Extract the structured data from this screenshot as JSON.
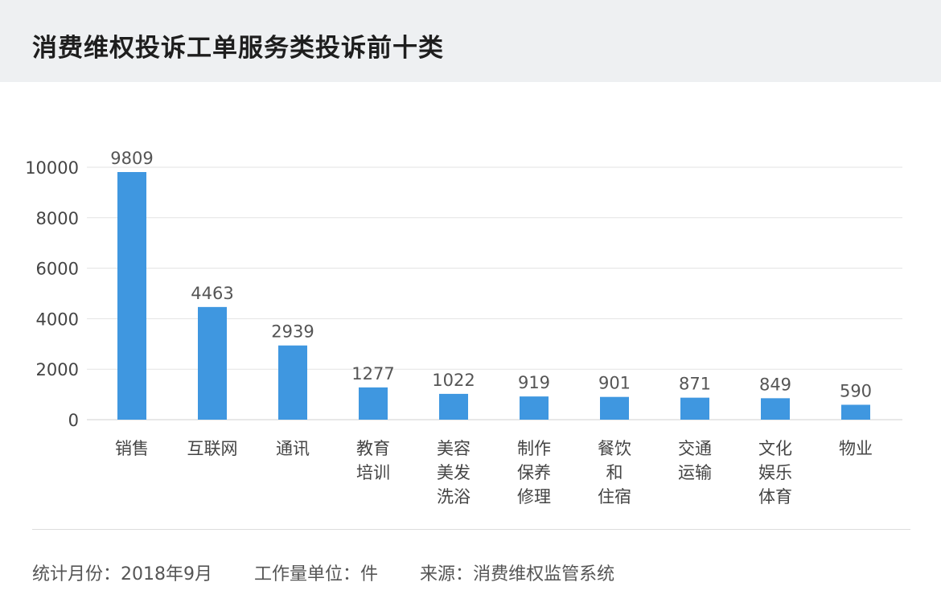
{
  "header": {
    "title": "消费维权投诉工单服务类投诉前十类"
  },
  "chart_data": {
    "type": "bar",
    "title": "消费维权投诉工单服务类投诉前十类",
    "categories": [
      [
        "销售"
      ],
      [
        "互联网"
      ],
      [
        "通讯"
      ],
      [
        "教育",
        "培训"
      ],
      [
        "美容",
        "美发",
        "洗浴"
      ],
      [
        "制作",
        "保养",
        "修理"
      ],
      [
        "餐饮",
        "和",
        "住宿"
      ],
      [
        "交通",
        "运输"
      ],
      [
        "文化",
        "娱乐",
        "体育"
      ],
      [
        "物业"
      ]
    ],
    "values": [
      9809,
      4463,
      2939,
      1277,
      1022,
      919,
      901,
      871,
      849,
      590
    ],
    "yticks": [
      "0",
      "2000",
      "4000",
      "6000",
      "8000",
      "10000"
    ],
    "ylim": [
      0,
      10000
    ],
    "grid": true,
    "bar_color": "#3f97e0"
  },
  "footer": {
    "period_label": "统计月份：",
    "period_value": "2018年9月",
    "unit_label": "工作量单位：",
    "unit_value": "件",
    "source_label": "来源：",
    "source_value": "消费维权监管系统"
  }
}
